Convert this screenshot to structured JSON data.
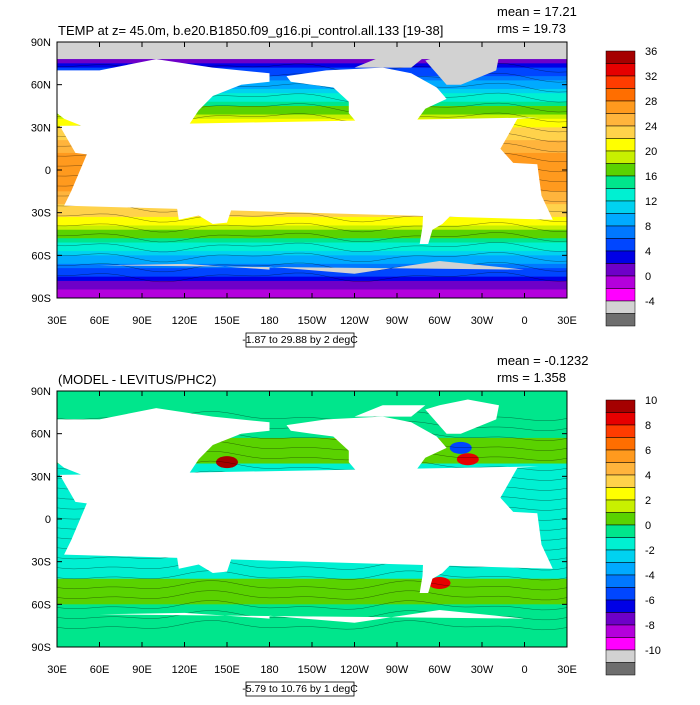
{
  "chart_data": [
    {
      "type": "heatmap",
      "title": "TEMP at z=  45.0m, b.e20.B1850.f09_g16.pi_control.all.133 [19-38]",
      "stats": [
        "mean = 17.21",
        "rms = 19.73"
      ],
      "range_label": "-1.87 to 29.88 by 2 degC",
      "lat_ticks": [
        "90N",
        "60N",
        "30N",
        "0",
        "30S",
        "60S",
        "90S"
      ],
      "lon_ticks": [
        "30E",
        "60E",
        "90E",
        "120E",
        "150E",
        "180",
        "150W",
        "120W",
        "90W",
        "60W",
        "30W",
        "0",
        "30E"
      ],
      "colorbar": {
        "labels": [
          "36",
          "32",
          "28",
          "24",
          "20",
          "16",
          "12",
          "8",
          "4",
          "0",
          "-4"
        ],
        "colors": [
          "#a50000",
          "#e60000",
          "#ff3c00",
          "#ff6e00",
          "#ff9a1e",
          "#ffb43c",
          "#ffd24b",
          "#ffff00",
          "#c8f000",
          "#5ad200",
          "#00e68c",
          "#00f0d2",
          "#00d2f0",
          "#00aaff",
          "#0078ff",
          "#0046ff",
          "#0000e6",
          "#6e00c8",
          "#b400dc",
          "#ff00ff",
          "#d2d2d2",
          "#6e6e6e"
        ]
      },
      "lon_range": [
        30,
        390
      ],
      "lat_range": [
        -90,
        90
      ],
      "fill_value_note": ""
    },
    {
      "type": "heatmap",
      "title": "(MODEL - LEVITUS/PHC2)",
      "stats": [
        "mean = -0.1232",
        "rms = 1.358"
      ],
      "range_label": "-5.79 to 10.76 by 1 degC",
      "lat_ticks": [
        "90N",
        "60N",
        "30N",
        "0",
        "30S",
        "60S",
        "90S"
      ],
      "lon_ticks": [
        "30E",
        "60E",
        "90E",
        "120E",
        "150E",
        "180",
        "150W",
        "120W",
        "90W",
        "60W",
        "30W",
        "0",
        "30E"
      ],
      "colorbar": {
        "labels": [
          "10",
          "8",
          "6",
          "4",
          "2",
          "0",
          "-2",
          "-4",
          "-6",
          "-8",
          "-10"
        ],
        "colors": [
          "#a50000",
          "#e60000",
          "#ff3c00",
          "#ff6e00",
          "#ff9a1e",
          "#ffb43c",
          "#ffd24b",
          "#ffff00",
          "#c8f000",
          "#5ad200",
          "#00e68c",
          "#00f0d2",
          "#00d2f0",
          "#00aaff",
          "#0078ff",
          "#0046ff",
          "#0000e6",
          "#6e00c8",
          "#b400dc",
          "#ff00ff",
          "#d2d2d2",
          "#6e6e6e"
        ]
      },
      "lon_range": [
        30,
        390
      ],
      "lat_range": [
        -90,
        90
      ]
    }
  ],
  "colors": {
    "land": "#ffffff",
    "ice": "#d2d2d2",
    "axis": "#000000"
  }
}
